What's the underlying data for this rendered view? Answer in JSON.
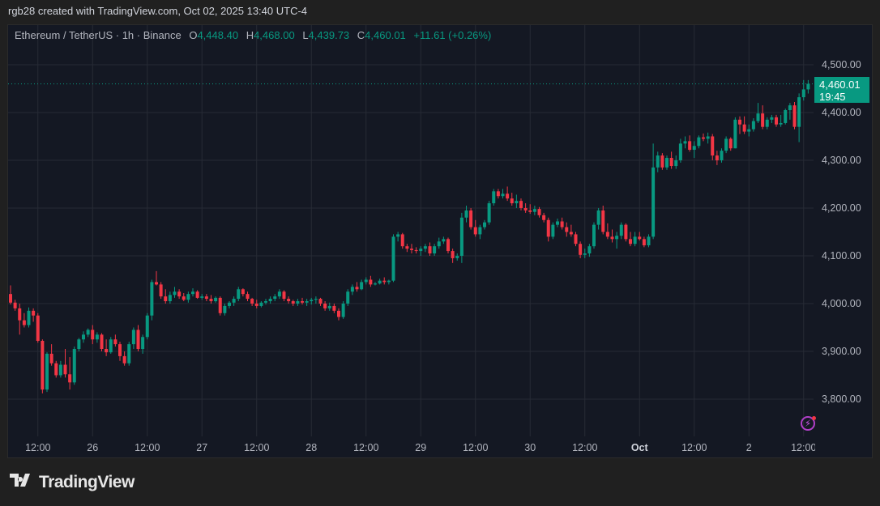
{
  "credit": "rgb28 created with TradingView.com, Oct 02, 2025 13:40 UTC-4",
  "legend": {
    "symbol": "Ethereum / TetherUS · 1h · Binance",
    "o_label": "O",
    "o": "4,448.40",
    "h_label": "H",
    "h": "4,468.00",
    "l_label": "L",
    "l": "4,439.73",
    "c_label": "C",
    "c": "4,460.01",
    "change": "+11.61 (+0.26%)"
  },
  "price_tag": {
    "price": "4,460.01",
    "countdown": "19:45"
  },
  "logo": {
    "text": "TradingView",
    "mark": "TV"
  },
  "icons": {
    "lightning": "lightning-icon"
  },
  "colors": {
    "up": "#089981",
    "down": "#f23645",
    "background": "#141823",
    "grid": "#262a35",
    "axis_text": "#b2b5be"
  },
  "chart_data": {
    "type": "candlestick",
    "title": "Ethereum / TetherUS · 1h · Binance",
    "interval": "1h",
    "start": "2025-09-25 06:00",
    "ylim": [
      3722,
      4583
    ],
    "grid": true,
    "last_price": 4460.01,
    "y_ticks": [
      {
        "value": 3800,
        "label": "3,800.00"
      },
      {
        "value": 3900,
        "label": "3,900.00"
      },
      {
        "value": 4000,
        "label": "4,000.00"
      },
      {
        "value": 4100,
        "label": "4,100.00"
      },
      {
        "value": 4200,
        "label": "4,200.00"
      },
      {
        "value": 4300,
        "label": "4,300.00"
      },
      {
        "value": 4400,
        "label": "4,400.00"
      },
      {
        "value": 4500,
        "label": "4,500.00"
      }
    ],
    "x_ticks": [
      {
        "time": "2025-09-25 12:00",
        "label": "12:00"
      },
      {
        "time": "2025-09-26 00:00",
        "label": "26"
      },
      {
        "time": "2025-09-26 12:00",
        "label": "12:00"
      },
      {
        "time": "2025-09-27 00:00",
        "label": "27"
      },
      {
        "time": "2025-09-27 12:00",
        "label": "12:00"
      },
      {
        "time": "2025-09-28 00:00",
        "label": "28"
      },
      {
        "time": "2025-09-28 12:00",
        "label": "12:00"
      },
      {
        "time": "2025-09-29 00:00",
        "label": "29"
      },
      {
        "time": "2025-09-29 12:00",
        "label": "12:00"
      },
      {
        "time": "2025-09-30 00:00",
        "label": "30"
      },
      {
        "time": "2025-09-30 12:00",
        "label": "12:00"
      },
      {
        "time": "2025-10-01 00:00",
        "label": "Oct",
        "bold": true
      },
      {
        "time": "2025-10-01 12:00",
        "label": "12:00"
      },
      {
        "time": "2025-10-02 00:00",
        "label": "2"
      },
      {
        "time": "2025-10-02 12:00",
        "label": "12:00"
      }
    ],
    "ohlc_fields": [
      "open",
      "high",
      "low",
      "close"
    ],
    "candles": [
      [
        4020,
        4038,
        3998,
        4002
      ],
      [
        4002,
        4008,
        3985,
        3990
      ],
      [
        3990,
        4000,
        3935,
        3965
      ],
      [
        3965,
        3980,
        3950,
        3955
      ],
      [
        3955,
        3992,
        3950,
        3985
      ],
      [
        3985,
        3990,
        3962,
        3975
      ],
      [
        3975,
        3980,
        3918,
        3922
      ],
      [
        3922,
        3925,
        3812,
        3820
      ],
      [
        3820,
        3898,
        3815,
        3895
      ],
      [
        3895,
        3915,
        3870,
        3875
      ],
      [
        3875,
        3880,
        3845,
        3850
      ],
      [
        3850,
        3880,
        3845,
        3872
      ],
      [
        3872,
        3905,
        3845,
        3852
      ],
      [
        3852,
        3888,
        3820,
        3835
      ],
      [
        3835,
        3910,
        3830,
        3905
      ],
      [
        3905,
        3928,
        3900,
        3925
      ],
      [
        3925,
        3942,
        3918,
        3935
      ],
      [
        3935,
        3948,
        3930,
        3945
      ],
      [
        3945,
        3955,
        3915,
        3925
      ],
      [
        3925,
        3940,
        3918,
        3935
      ],
      [
        3935,
        3938,
        3900,
        3905
      ],
      [
        3905,
        3925,
        3890,
        3898
      ],
      [
        3898,
        3930,
        3895,
        3925
      ],
      [
        3925,
        3935,
        3910,
        3915
      ],
      [
        3915,
        3920,
        3880,
        3890
      ],
      [
        3890,
        3900,
        3870,
        3875
      ],
      [
        3875,
        3920,
        3870,
        3915
      ],
      [
        3915,
        3950,
        3905,
        3945
      ],
      [
        3945,
        3955,
        3900,
        3905
      ],
      [
        3905,
        3935,
        3895,
        3930
      ],
      [
        3930,
        3980,
        3925,
        3975
      ],
      [
        3975,
        4050,
        3965,
        4045
      ],
      [
        4045,
        4068,
        4038,
        4040
      ],
      [
        4040,
        4045,
        4010,
        4015
      ],
      [
        4015,
        4030,
        4000,
        4005
      ],
      [
        4005,
        4025,
        4000,
        4018
      ],
      [
        4018,
        4035,
        4012,
        4025
      ],
      [
        4025,
        4030,
        4010,
        4015
      ],
      [
        4015,
        4022,
        4005,
        4008
      ],
      [
        4008,
        4025,
        4002,
        4020
      ],
      [
        4020,
        4032,
        4015,
        4025
      ],
      [
        4025,
        4028,
        4010,
        4012
      ],
      [
        4012,
        4020,
        4008,
        4015
      ],
      [
        4015,
        4020,
        4005,
        4010
      ],
      [
        4010,
        4018,
        4000,
        4005
      ],
      [
        4005,
        4015,
        4002,
        4012
      ],
      [
        4012,
        4015,
        3975,
        3980
      ],
      [
        3980,
        4000,
        3975,
        3995
      ],
      [
        3995,
        4005,
        3990,
        4002
      ],
      [
        4002,
        4015,
        3995,
        4010
      ],
      [
        4010,
        4035,
        4005,
        4030
      ],
      [
        4030,
        4032,
        4015,
        4020
      ],
      [
        4020,
        4025,
        4005,
        4010
      ],
      [
        4010,
        4012,
        3995,
        4000
      ],
      [
        4000,
        4008,
        3990,
        3995
      ],
      [
        3995,
        4005,
        3992,
        4002
      ],
      [
        4002,
        4010,
        3998,
        4005
      ],
      [
        4005,
        4015,
        4000,
        4010
      ],
      [
        4010,
        4020,
        4005,
        4015
      ],
      [
        4015,
        4030,
        4010,
        4025
      ],
      [
        4025,
        4028,
        4005,
        4010
      ],
      [
        4010,
        4015,
        4000,
        4005
      ],
      [
        4005,
        4008,
        3995,
        4000
      ],
      [
        4000,
        4010,
        3995,
        4005
      ],
      [
        4005,
        4012,
        3998,
        4002
      ],
      [
        4002,
        4010,
        3995,
        4005
      ],
      [
        4005,
        4012,
        3998,
        4008
      ],
      [
        4008,
        4015,
        4000,
        4010
      ],
      [
        4010,
        4012,
        3995,
        4000
      ],
      [
        4000,
        4005,
        3985,
        3990
      ],
      [
        3990,
        4002,
        3985,
        3995
      ],
      [
        3995,
        4000,
        3980,
        3985
      ],
      [
        3985,
        3990,
        3965,
        3972
      ],
      [
        3972,
        4005,
        3968,
        4000
      ],
      [
        4000,
        4030,
        3995,
        4025
      ],
      [
        4025,
        4040,
        4018,
        4035
      ],
      [
        4035,
        4045,
        4025,
        4030
      ],
      [
        4030,
        4050,
        4028,
        4045
      ],
      [
        4045,
        4055,
        4040,
        4050
      ],
      [
        4050,
        4058,
        4035,
        4040
      ],
      [
        4040,
        4045,
        4038,
        4042
      ],
      [
        4042,
        4052,
        4040,
        4048
      ],
      [
        4048,
        4055,
        4040,
        4045
      ],
      [
        4045,
        4050,
        4040,
        4048
      ],
      [
        4048,
        4145,
        4045,
        4140
      ],
      [
        4140,
        4150,
        4130,
        4145
      ],
      [
        4145,
        4148,
        4115,
        4120
      ],
      [
        4120,
        4125,
        4108,
        4115
      ],
      [
        4115,
        4125,
        4105,
        4112
      ],
      [
        4112,
        4118,
        4105,
        4110
      ],
      [
        4110,
        4120,
        4100,
        4115
      ],
      [
        4115,
        4125,
        4108,
        4120
      ],
      [
        4120,
        4128,
        4100,
        4105
      ],
      [
        4105,
        4125,
        4100,
        4120
      ],
      [
        4120,
        4138,
        4115,
        4130
      ],
      [
        4130,
        4140,
        4125,
        4135
      ],
      [
        4135,
        4138,
        4105,
        4110
      ],
      [
        4110,
        4115,
        4085,
        4095
      ],
      [
        4095,
        4105,
        4090,
        4100
      ],
      [
        4100,
        4190,
        4085,
        4180
      ],
      [
        4180,
        4205,
        4170,
        4195
      ],
      [
        4195,
        4200,
        4155,
        4160
      ],
      [
        4160,
        4175,
        4140,
        4145
      ],
      [
        4145,
        4165,
        4135,
        4160
      ],
      [
        4160,
        4175,
        4155,
        4170
      ],
      [
        4170,
        4215,
        4165,
        4210
      ],
      [
        4210,
        4240,
        4205,
        4235
      ],
      [
        4235,
        4240,
        4220,
        4225
      ],
      [
        4225,
        4240,
        4220,
        4230
      ],
      [
        4230,
        4245,
        4215,
        4220
      ],
      [
        4220,
        4232,
        4205,
        4210
      ],
      [
        4210,
        4228,
        4200,
        4215
      ],
      [
        4215,
        4220,
        4195,
        4200
      ],
      [
        4200,
        4210,
        4190,
        4195
      ],
      [
        4195,
        4208,
        4188,
        4192
      ],
      [
        4192,
        4205,
        4185,
        4198
      ],
      [
        4198,
        4202,
        4180,
        4185
      ],
      [
        4185,
        4190,
        4170,
        4175
      ],
      [
        4175,
        4180,
        4130,
        4140
      ],
      [
        4140,
        4170,
        4135,
        4165
      ],
      [
        4165,
        4178,
        4160,
        4172
      ],
      [
        4172,
        4180,
        4155,
        4160
      ],
      [
        4160,
        4170,
        4140,
        4150
      ],
      [
        4150,
        4165,
        4140,
        4145
      ],
      [
        4145,
        4150,
        4120,
        4125
      ],
      [
        4125,
        4130,
        4095,
        4102
      ],
      [
        4102,
        4115,
        4095,
        4105
      ],
      [
        4105,
        4125,
        4098,
        4120
      ],
      [
        4120,
        4170,
        4115,
        4165
      ],
      [
        4165,
        4200,
        4155,
        4195
      ],
      [
        4195,
        4205,
        4145,
        4150
      ],
      [
        4150,
        4168,
        4135,
        4140
      ],
      [
        4140,
        4155,
        4128,
        4135
      ],
      [
        4135,
        4150,
        4115,
        4142
      ],
      [
        4142,
        4170,
        4135,
        4165
      ],
      [
        4165,
        4168,
        4130,
        4135
      ],
      [
        4135,
        4150,
        4120,
        4125
      ],
      [
        4125,
        4150,
        4120,
        4140
      ],
      [
        4140,
        4150,
        4132,
        4135
      ],
      [
        4135,
        4140,
        4118,
        4122
      ],
      [
        4122,
        4145,
        4118,
        4140
      ],
      [
        4140,
        4335,
        4135,
        4285
      ],
      [
        4285,
        4318,
        4275,
        4310
      ],
      [
        4310,
        4315,
        4280,
        4285
      ],
      [
        4285,
        4310,
        4280,
        4305
      ],
      [
        4305,
        4318,
        4282,
        4288
      ],
      [
        4288,
        4310,
        4282,
        4300
      ],
      [
        4300,
        4345,
        4295,
        4335
      ],
      [
        4335,
        4350,
        4325,
        4340
      ],
      [
        4340,
        4352,
        4318,
        4322
      ],
      [
        4322,
        4340,
        4305,
        4330
      ],
      [
        4330,
        4352,
        4325,
        4348
      ],
      [
        4348,
        4356,
        4340,
        4345
      ],
      [
        4345,
        4358,
        4335,
        4350
      ],
      [
        4350,
        4355,
        4300,
        4310
      ],
      [
        4310,
        4320,
        4290,
        4300
      ],
      [
        4300,
        4325,
        4295,
        4320
      ],
      [
        4320,
        4350,
        4315,
        4345
      ],
      [
        4345,
        4348,
        4320,
        4325
      ],
      [
        4325,
        4390,
        4325,
        4385
      ],
      [
        4385,
        4392,
        4355,
        4375
      ],
      [
        4375,
        4392,
        4355,
        4360
      ],
      [
        4360,
        4375,
        4350,
        4365
      ],
      [
        4365,
        4388,
        4360,
        4382
      ],
      [
        4382,
        4420,
        4378,
        4398
      ],
      [
        4398,
        4415,
        4365,
        4370
      ],
      [
        4370,
        4390,
        4365,
        4385
      ],
      [
        4385,
        4395,
        4378,
        4390
      ],
      [
        4390,
        4395,
        4370,
        4375
      ],
      [
        4375,
        4395,
        4370,
        4378
      ],
      [
        4378,
        4408,
        4375,
        4405
      ],
      [
        4405,
        4420,
        4385,
        4415
      ],
      [
        4415,
        4422,
        4365,
        4370
      ],
      [
        4370,
        4440,
        4338,
        4432
      ],
      [
        4432,
        4468,
        4425,
        4448.4
      ],
      [
        4448.4,
        4468.0,
        4439.73,
        4460.01
      ]
    ]
  }
}
